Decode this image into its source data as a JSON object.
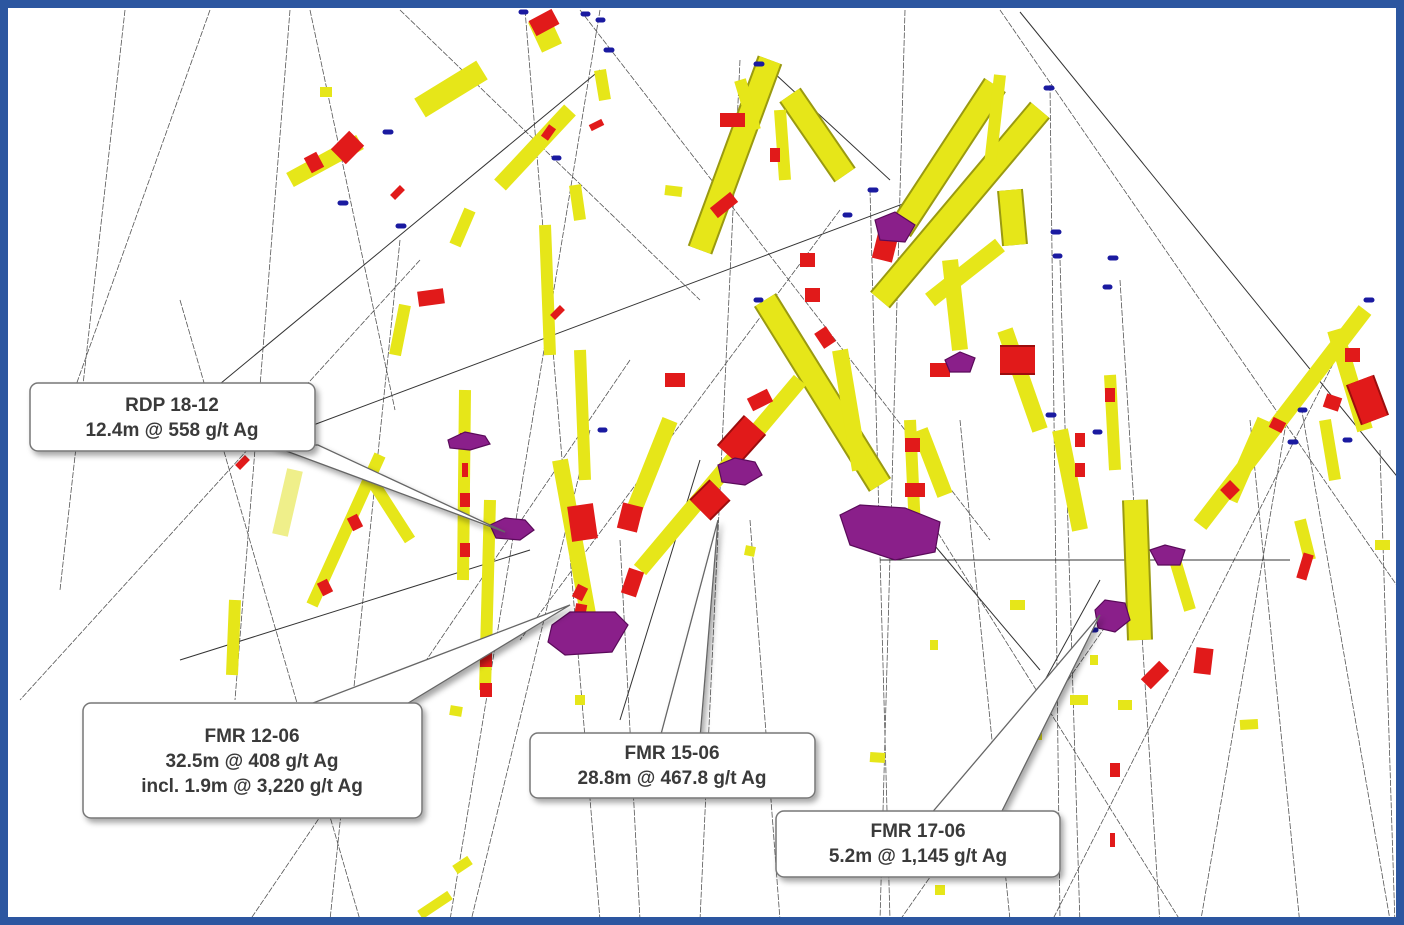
{
  "callouts": [
    {
      "title": "RDP 18-12",
      "lines": [
        "12.4m @ 558 g/t Ag"
      ]
    },
    {
      "title": "FMR 12-06",
      "lines": [
        "32.5m @ 408 g/t Ag",
        "incl. 1.9m @ 3,220 g/t Ag"
      ]
    },
    {
      "title": "FMR 15-06",
      "lines": [
        "28.8m @ 467.8 g/t Ag"
      ]
    },
    {
      "title": "FMR 17-06",
      "lines": [
        "5.2m @ 1,145 g/t Ag"
      ]
    }
  ]
}
